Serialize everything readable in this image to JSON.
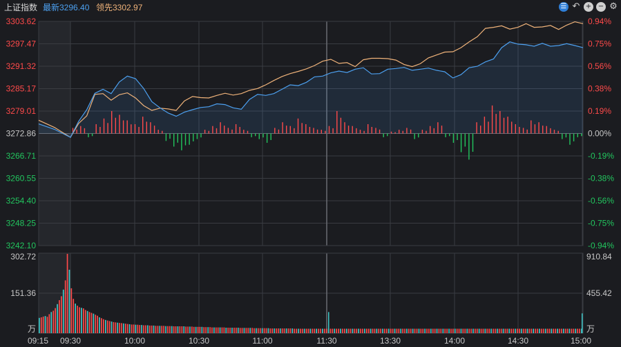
{
  "header": {
    "index_name": "上证指数",
    "latest_label": "最新",
    "latest_value": "3296.40",
    "lead_label": "领先",
    "lead_value": "3302.97"
  },
  "toolbar": {
    "icons": [
      "settings-dial-icon",
      "undo-icon",
      "zoom-in-icon",
      "zoom-out-icon",
      "gear-icon"
    ]
  },
  "colors": {
    "up": "#ff4a4a",
    "down": "#22c55e",
    "latest_line": "#4ca0f0",
    "lead_line": "#f0b37a",
    "neutral": "#c8c8c8",
    "grid": "#3a3c42",
    "volume_up": "#ff4a4a",
    "volume_down": "#3fc9c9"
  },
  "chart_data": {
    "type": "line",
    "prev_close": 3272.86,
    "price_axis": {
      "left_ticks": [
        "3303.62",
        "3297.47",
        "3291.32",
        "3285.17",
        "3279.01",
        "3272.86",
        "3266.71",
        "3260.55",
        "3254.40",
        "3248.25",
        "3242.10"
      ],
      "right_ticks": [
        "0.94%",
        "0.75%",
        "0.56%",
        "0.38%",
        "0.19%",
        "0.00%",
        "-0.19%",
        "-0.38%",
        "-0.56%",
        "-0.75%",
        "-0.94%"
      ],
      "ylim": [
        3242.1,
        3303.62
      ]
    },
    "volume_axis": {
      "left_ticks": [
        "302.72",
        "151.36",
        "万"
      ],
      "right_ticks": [
        "910.84",
        "455.42",
        "万"
      ],
      "ylim": [
        0,
        302.72
      ]
    },
    "time_ticks": [
      "09:15",
      "09:30",
      "10:00",
      "10:30",
      "11:00",
      "11:30",
      "13:30",
      "14:00",
      "14:30",
      "15:00"
    ],
    "series": [
      {
        "name": "最新",
        "values": [
          3275.5,
          3274.0,
          3271.8,
          3276.2,
          3279.4,
          3283.9,
          3285.0,
          3283.8,
          3287.0,
          3288.6,
          3287.9,
          3285.2,
          3281.6,
          3279.9,
          3278.5,
          3277.6,
          3278.7,
          3279.4,
          3280.0,
          3280.2,
          3281.0,
          3280.8,
          3279.9,
          3279.5,
          3282.2,
          3283.6,
          3283.3,
          3283.8,
          3285.0,
          3286.2,
          3286.0,
          3286.9,
          3288.4,
          3288.6,
          3289.5,
          3290.0,
          3289.6,
          3290.5,
          3290.9,
          3289.2,
          3289.3,
          3290.5,
          3290.7,
          3291.0,
          3290.2,
          3290.5,
          3290.8,
          3290.2,
          3289.8,
          3288.1,
          3289.0,
          3290.9,
          3291.3,
          3292.5,
          3293.3,
          3296.4,
          3298.0,
          3297.4,
          3297.2,
          3296.8,
          3297.6,
          3296.8,
          3297.0,
          3297.5,
          3297.0,
          3296.4
        ]
      },
      {
        "name": "领先",
        "values": [
          3276.5,
          3274.5,
          3271.8,
          3275.6,
          3277.7,
          3283.6,
          3283.8,
          3282.0,
          3283.5,
          3284.0,
          3282.6,
          3280.5,
          3279.2,
          3279.8,
          3279.6,
          3279.2,
          3281.8,
          3283.0,
          3282.7,
          3282.6,
          3283.3,
          3283.9,
          3283.4,
          3283.8,
          3284.7,
          3285.2,
          3286.2,
          3287.4,
          3288.5,
          3289.3,
          3289.9,
          3290.6,
          3291.5,
          3292.7,
          3293.2,
          3292.1,
          3292.3,
          3291.2,
          3293.1,
          3293.5,
          3293.5,
          3293.4,
          3293.0,
          3291.8,
          3291.2,
          3292.0,
          3293.6,
          3294.4,
          3295.2,
          3295.3,
          3296.4,
          3298.0,
          3299.4,
          3301.7,
          3302.0,
          3302.4,
          3301.5,
          3302.0,
          3303.0,
          3302.0,
          3302.1,
          3302.5,
          3301.4,
          3302.6,
          3303.5,
          3303.0
        ]
      }
    ],
    "diff_bars": [
      3,
      4,
      -2,
      5,
      8,
      12,
      10,
      7,
      5,
      9,
      6,
      2,
      -4,
      -7,
      -9,
      -6,
      -3,
      2,
      4,
      6,
      3,
      5,
      2,
      -2,
      -3,
      -5,
      3,
      6,
      4,
      8,
      5,
      3,
      2,
      4,
      12,
      6,
      4,
      2,
      5,
      3,
      -2,
      1,
      2,
      3,
      -3,
      2,
      4,
      6,
      -2,
      -5,
      -10,
      -14,
      6,
      9,
      15,
      12,
      9,
      5,
      3,
      7,
      6,
      4,
      2,
      -3,
      -6,
      -2
    ],
    "volume": [
      58,
      60,
      63,
      65,
      62,
      72,
      80,
      85,
      95,
      110,
      125,
      140,
      165,
      200,
      300,
      240,
      170,
      130,
      112,
      104,
      98,
      96,
      94,
      88,
      84,
      80,
      77,
      74,
      70,
      66,
      60,
      57,
      53,
      50,
      48,
      46,
      44,
      42,
      41,
      40,
      39,
      38,
      37,
      36,
      35,
      34,
      33,
      33,
      32,
      32,
      31,
      31,
      30,
      30,
      30,
      29,
      29,
      29,
      28,
      28,
      28,
      28,
      28,
      27,
      27,
      27,
      27,
      26,
      26,
      26,
      26,
      26,
      26,
      25,
      25,
      25,
      25,
      24,
      24,
      24,
      24,
      24,
      23,
      23,
      23,
      23,
      22,
      22,
      22,
      22,
      22,
      22,
      22,
      21,
      21,
      21,
      21,
      21,
      21,
      21,
      20,
      20,
      20,
      20,
      20,
      20,
      20,
      19,
      19,
      19,
      19,
      19,
      19,
      19,
      19,
      18,
      18,
      18,
      18,
      18,
      18,
      18,
      18,
      18,
      18,
      18,
      18,
      17,
      17,
      17,
      17,
      17,
      17,
      17,
      17,
      17,
      17,
      17,
      17,
      17,
      17,
      17,
      17,
      17,
      17,
      17,
      17,
      17,
      17,
      17,
      17,
      17,
      17,
      17,
      17,
      17,
      17,
      17,
      17,
      17,
      17,
      17,
      17,
      17,
      17,
      17,
      17,
      17,
      17,
      17,
      17,
      17,
      17,
      17,
      17,
      17,
      17,
      17,
      17,
      17,
      17,
      17,
      17,
      17,
      17,
      17,
      17,
      17,
      17,
      17,
      17,
      17,
      17,
      17,
      17,
      17,
      17,
      17,
      17,
      17,
      17,
      17,
      17,
      17,
      17,
      17,
      17,
      17,
      17,
      17,
      17,
      17,
      17,
      17,
      17,
      17,
      17,
      17,
      17,
      17,
      17,
      17,
      17,
      17,
      17,
      17,
      17,
      17,
      17,
      17,
      17,
      17,
      17,
      17,
      17,
      17,
      17,
      17,
      17,
      17,
      17,
      17,
      17,
      17,
      17,
      17,
      17,
      17,
      17,
      17,
      17,
      17,
      17,
      17,
      17,
      17,
      17,
      17,
      17,
      17,
      17,
      17,
      17,
      17,
      17,
      17,
      17,
      17,
      17,
      17,
      17
    ],
    "volume_spike_at_1130": 80,
    "volume_end_spike": 75
  }
}
